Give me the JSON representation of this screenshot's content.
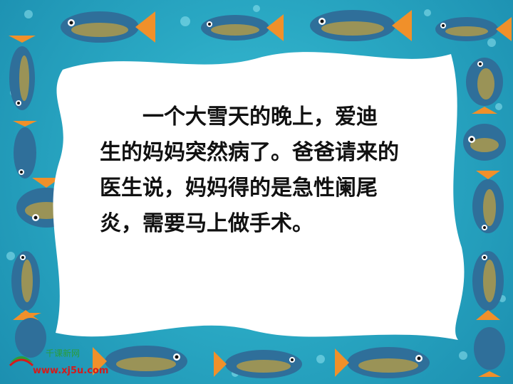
{
  "story": {
    "lines": [
      "一个大雪天的晚上，爱迪",
      "生的妈妈突然病了。爸爸请来的",
      "医生说，妈妈得的是急性阑尾",
      "炎，需要马上做手术。"
    ]
  },
  "watermark": {
    "name": "千课新网",
    "url": "www.xj5u.com"
  },
  "colors": {
    "water": "#2aa9c4",
    "fish_body": "#2f6f9a",
    "fish_fin": "#f0902a",
    "card": "#ffffff"
  }
}
